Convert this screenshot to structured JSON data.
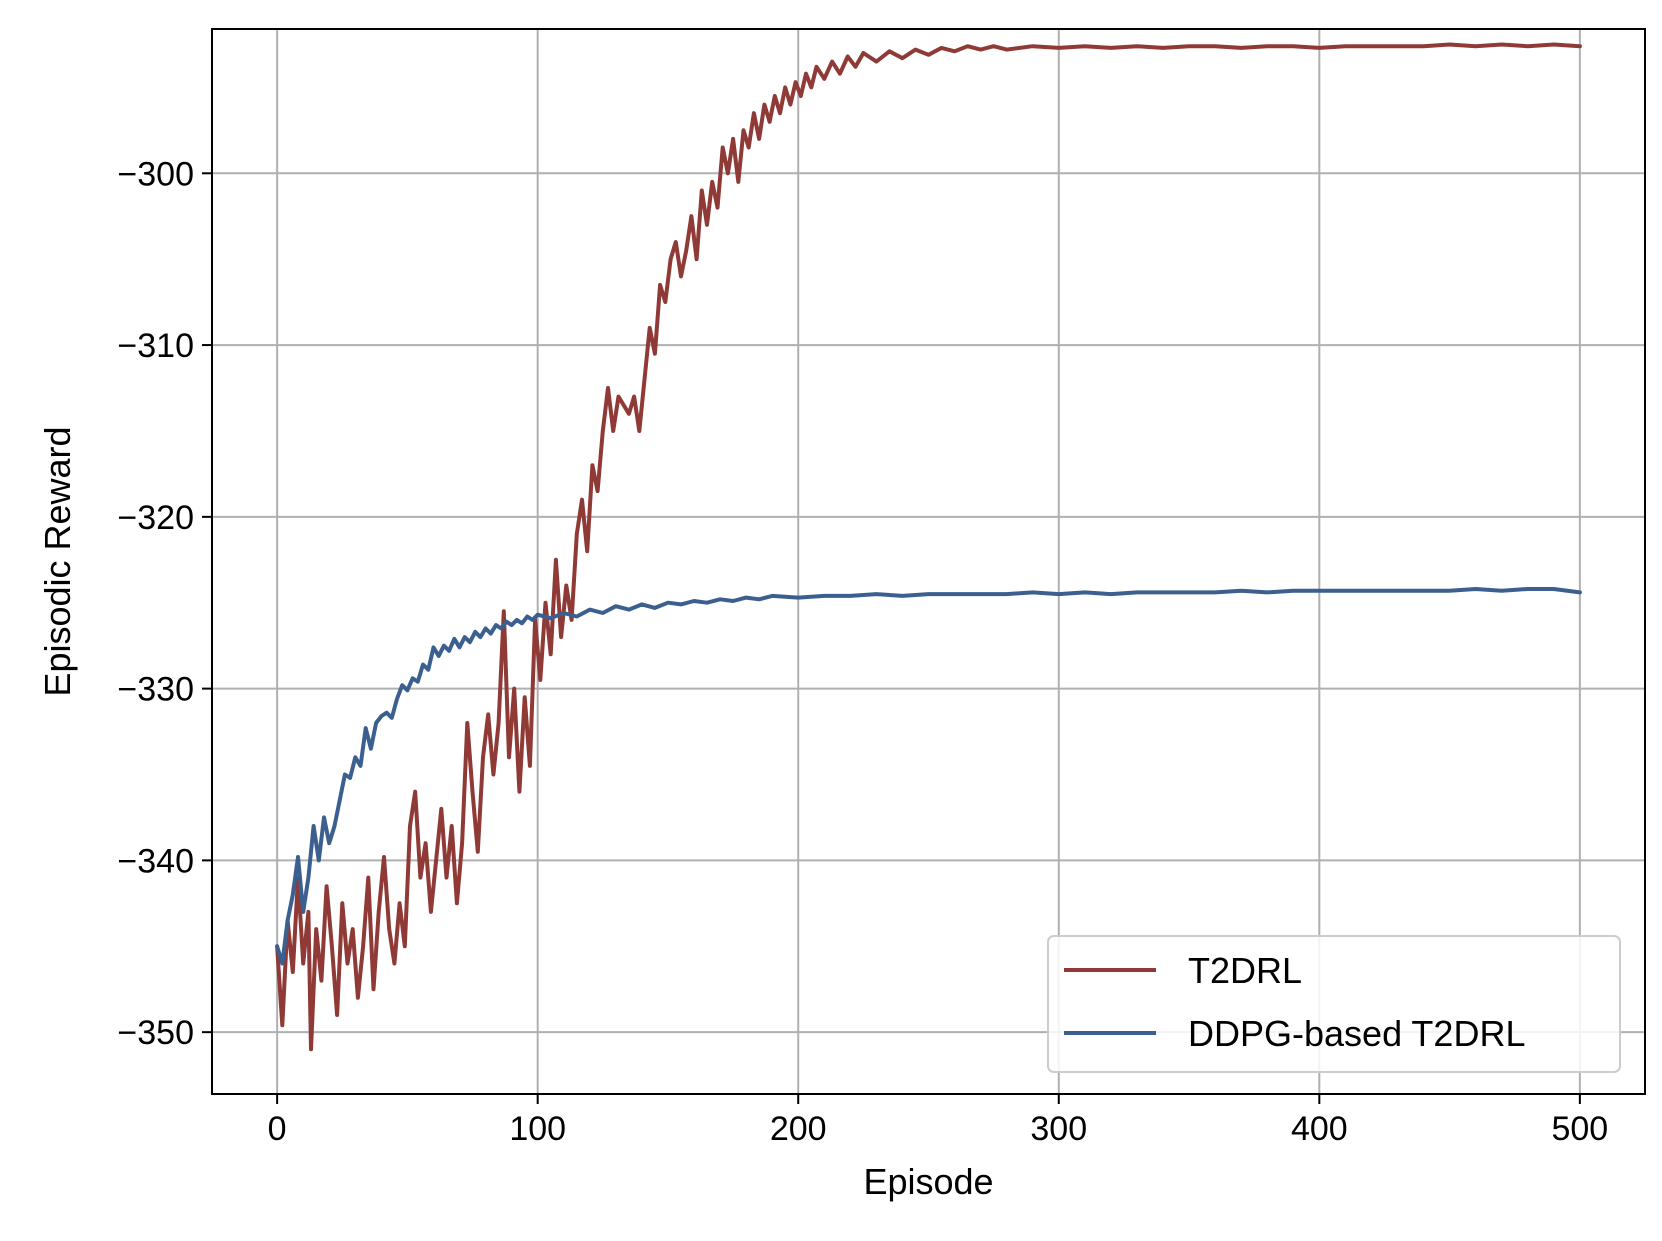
{
  "chart_data": {
    "type": "line",
    "title": "",
    "xlabel": "Episode",
    "ylabel": "Episodic Reward",
    "xlim": [
      -25,
      525
    ],
    "ylim": [
      -353.6,
      -291.6
    ],
    "xticks": [
      0,
      100,
      200,
      300,
      400,
      500
    ],
    "yticks": [
      -350,
      -340,
      -330,
      -320,
      -310,
      -300
    ],
    "xtick_labels": [
      "0",
      "100",
      "200",
      "300",
      "400",
      "500"
    ],
    "ytick_labels": [
      "−350",
      "−340",
      "−330",
      "−320",
      "−310",
      "−300"
    ],
    "grid": true,
    "legend_position": "lower-right",
    "series": [
      {
        "name": "T2DRL",
        "color": "#8f3a36",
        "points": [
          [
            0,
            -345
          ],
          [
            2,
            -349.6
          ],
          [
            4,
            -343.5
          ],
          [
            6,
            -346.5
          ],
          [
            8,
            -341
          ],
          [
            10,
            -346
          ],
          [
            12,
            -343
          ],
          [
            13,
            -351
          ],
          [
            15,
            -344
          ],
          [
            17,
            -347
          ],
          [
            19,
            -341.5
          ],
          [
            21,
            -345
          ],
          [
            23,
            -349
          ],
          [
            25,
            -342.5
          ],
          [
            27,
            -346
          ],
          [
            29,
            -344
          ],
          [
            31,
            -348
          ],
          [
            33,
            -345
          ],
          [
            35,
            -341
          ],
          [
            37,
            -347.5
          ],
          [
            39,
            -343
          ],
          [
            41,
            -339.8
          ],
          [
            43,
            -344
          ],
          [
            45,
            -346
          ],
          [
            47,
            -342.5
          ],
          [
            49,
            -345
          ],
          [
            51,
            -338
          ],
          [
            53,
            -336
          ],
          [
            55,
            -341
          ],
          [
            57,
            -339
          ],
          [
            59,
            -343
          ],
          [
            61,
            -340
          ],
          [
            63,
            -337
          ],
          [
            65,
            -341
          ],
          [
            67,
            -338
          ],
          [
            69,
            -342.5
          ],
          [
            71,
            -339
          ],
          [
            73,
            -332
          ],
          [
            75,
            -336
          ],
          [
            77,
            -339.5
          ],
          [
            79,
            -334
          ],
          [
            81,
            -331.5
          ],
          [
            83,
            -335
          ],
          [
            85,
            -332
          ],
          [
            87,
            -325.5
          ],
          [
            89,
            -334
          ],
          [
            91,
            -330
          ],
          [
            93,
            -336
          ],
          [
            95,
            -330.5
          ],
          [
            97,
            -334.5
          ],
          [
            99,
            -326
          ],
          [
            101,
            -329.5
          ],
          [
            103,
            -325
          ],
          [
            105,
            -328
          ],
          [
            107,
            -322.5
          ],
          [
            109,
            -327
          ],
          [
            111,
            -324
          ],
          [
            113,
            -326
          ],
          [
            115,
            -321
          ],
          [
            117,
            -319
          ],
          [
            119,
            -322
          ],
          [
            121,
            -317
          ],
          [
            123,
            -318.5
          ],
          [
            125,
            -315
          ],
          [
            127,
            -312.5
          ],
          [
            129,
            -315
          ],
          [
            131,
            -313
          ],
          [
            133,
            -313.5
          ],
          [
            135,
            -314
          ],
          [
            137,
            -313
          ],
          [
            139,
            -315
          ],
          [
            141,
            -312
          ],
          [
            143,
            -309
          ],
          [
            145,
            -310.5
          ],
          [
            147,
            -306.5
          ],
          [
            149,
            -307.5
          ],
          [
            151,
            -305
          ],
          [
            153,
            -304
          ],
          [
            155,
            -306
          ],
          [
            157,
            -304.5
          ],
          [
            159,
            -302.5
          ],
          [
            161,
            -305
          ],
          [
            163,
            -301
          ],
          [
            165,
            -303
          ],
          [
            167,
            -300.5
          ],
          [
            169,
            -302
          ],
          [
            171,
            -298.5
          ],
          [
            173,
            -300
          ],
          [
            175,
            -298
          ],
          [
            177,
            -300.5
          ],
          [
            179,
            -297.5
          ],
          [
            181,
            -298.5
          ],
          [
            183,
            -296.5
          ],
          [
            185,
            -298
          ],
          [
            187,
            -296
          ],
          [
            189,
            -297
          ],
          [
            191,
            -295.5
          ],
          [
            193,
            -296.5
          ],
          [
            195,
            -295
          ],
          [
            197,
            -296
          ],
          [
            199,
            -294.7
          ],
          [
            201,
            -295.5
          ],
          [
            203,
            -294.2
          ],
          [
            205,
            -295
          ],
          [
            207,
            -293.8
          ],
          [
            210,
            -294.5
          ],
          [
            213,
            -293.5
          ],
          [
            216,
            -294.2
          ],
          [
            219,
            -293.2
          ],
          [
            222,
            -293.8
          ],
          [
            225,
            -293
          ],
          [
            230,
            -293.5
          ],
          [
            235,
            -292.9
          ],
          [
            240,
            -293.3
          ],
          [
            245,
            -292.8
          ],
          [
            250,
            -293.1
          ],
          [
            255,
            -292.7
          ],
          [
            260,
            -292.9
          ],
          [
            265,
            -292.6
          ],
          [
            270,
            -292.8
          ],
          [
            275,
            -292.6
          ],
          [
            280,
            -292.8
          ],
          [
            290,
            -292.6
          ],
          [
            300,
            -292.7
          ],
          [
            310,
            -292.6
          ],
          [
            320,
            -292.7
          ],
          [
            330,
            -292.6
          ],
          [
            340,
            -292.7
          ],
          [
            350,
            -292.6
          ],
          [
            360,
            -292.6
          ],
          [
            370,
            -292.7
          ],
          [
            380,
            -292.6
          ],
          [
            390,
            -292.6
          ],
          [
            400,
            -292.7
          ],
          [
            410,
            -292.6
          ],
          [
            420,
            -292.6
          ],
          [
            430,
            -292.6
          ],
          [
            440,
            -292.6
          ],
          [
            450,
            -292.5
          ],
          [
            460,
            -292.6
          ],
          [
            470,
            -292.5
          ],
          [
            480,
            -292.6
          ],
          [
            490,
            -292.5
          ],
          [
            500,
            -292.6
          ]
        ]
      },
      {
        "name": "DDPG-based T2DRL",
        "color": "#3b5f8f",
        "points": [
          [
            0,
            -345
          ],
          [
            2,
            -346
          ],
          [
            4,
            -343.5
          ],
          [
            6,
            -342
          ],
          [
            8,
            -339.8
          ],
          [
            10,
            -343
          ],
          [
            12,
            -341
          ],
          [
            14,
            -338
          ],
          [
            16,
            -340
          ],
          [
            18,
            -337.5
          ],
          [
            20,
            -339
          ],
          [
            22,
            -338
          ],
          [
            24,
            -336.5
          ],
          [
            26,
            -335
          ],
          [
            28,
            -335.2
          ],
          [
            30,
            -334
          ],
          [
            32,
            -334.5
          ],
          [
            34,
            -332.3
          ],
          [
            36,
            -333.5
          ],
          [
            38,
            -332
          ],
          [
            40,
            -331.6
          ],
          [
            42,
            -331.4
          ],
          [
            44,
            -331.7
          ],
          [
            46,
            -330.6
          ],
          [
            48,
            -329.8
          ],
          [
            50,
            -330.1
          ],
          [
            52,
            -329.4
          ],
          [
            54,
            -329.6
          ],
          [
            56,
            -328.6
          ],
          [
            58,
            -328.9
          ],
          [
            60,
            -327.6
          ],
          [
            62,
            -328.1
          ],
          [
            64,
            -327.5
          ],
          [
            66,
            -327.8
          ],
          [
            68,
            -327.1
          ],
          [
            70,
            -327.6
          ],
          [
            72,
            -327.0
          ],
          [
            74,
            -327.3
          ],
          [
            76,
            -326.7
          ],
          [
            78,
            -327.0
          ],
          [
            80,
            -326.5
          ],
          [
            82,
            -326.8
          ],
          [
            84,
            -326.3
          ],
          [
            86,
            -326.5
          ],
          [
            88,
            -326.1
          ],
          [
            90,
            -326.3
          ],
          [
            92,
            -326.0
          ],
          [
            94,
            -326.2
          ],
          [
            96,
            -325.8
          ],
          [
            98,
            -326.0
          ],
          [
            100,
            -325.7
          ],
          [
            105,
            -325.9
          ],
          [
            110,
            -325.6
          ],
          [
            115,
            -325.8
          ],
          [
            120,
            -325.4
          ],
          [
            125,
            -325.6
          ],
          [
            130,
            -325.2
          ],
          [
            135,
            -325.4
          ],
          [
            140,
            -325.1
          ],
          [
            145,
            -325.3
          ],
          [
            150,
            -325.0
          ],
          [
            155,
            -325.1
          ],
          [
            160,
            -324.9
          ],
          [
            165,
            -325.0
          ],
          [
            170,
            -324.8
          ],
          [
            175,
            -324.9
          ],
          [
            180,
            -324.7
          ],
          [
            185,
            -324.8
          ],
          [
            190,
            -324.6
          ],
          [
            200,
            -324.7
          ],
          [
            210,
            -324.6
          ],
          [
            220,
            -324.6
          ],
          [
            230,
            -324.5
          ],
          [
            240,
            -324.6
          ],
          [
            250,
            -324.5
          ],
          [
            260,
            -324.5
          ],
          [
            270,
            -324.5
          ],
          [
            280,
            -324.5
          ],
          [
            290,
            -324.4
          ],
          [
            300,
            -324.5
          ],
          [
            310,
            -324.4
          ],
          [
            320,
            -324.5
          ],
          [
            330,
            -324.4
          ],
          [
            340,
            -324.4
          ],
          [
            350,
            -324.4
          ],
          [
            360,
            -324.4
          ],
          [
            370,
            -324.3
          ],
          [
            380,
            -324.4
          ],
          [
            390,
            -324.3
          ],
          [
            400,
            -324.3
          ],
          [
            410,
            -324.3
          ],
          [
            420,
            -324.3
          ],
          [
            430,
            -324.3
          ],
          [
            440,
            -324.3
          ],
          [
            450,
            -324.3
          ],
          [
            460,
            -324.2
          ],
          [
            470,
            -324.3
          ],
          [
            480,
            -324.2
          ],
          [
            490,
            -324.2
          ],
          [
            500,
            -324.4
          ]
        ]
      }
    ]
  }
}
